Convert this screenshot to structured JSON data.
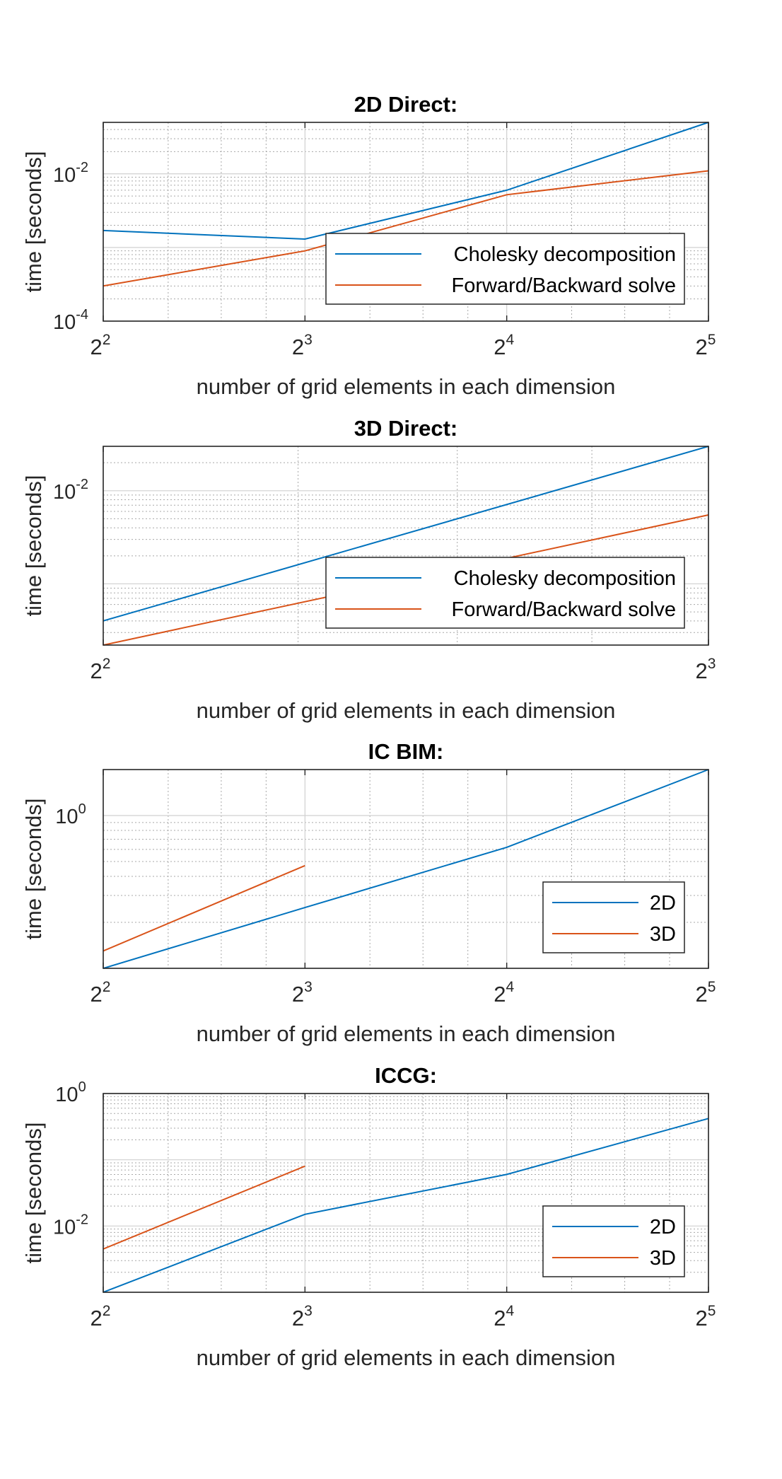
{
  "colors": {
    "series1": "#0072BD",
    "series2": "#D95319",
    "axis": "#262626",
    "grid_major": "#d0d0d0",
    "grid_minor": "#a8a8a8",
    "background": "#ffffff"
  },
  "chart_data": [
    {
      "type": "line",
      "title": "2D Direct:",
      "xlabel": "number of grid elements in each dimension",
      "ylabel": "time [seconds]",
      "x_scale": "log2",
      "y_scale": "log",
      "xlim": [
        4,
        32
      ],
      "ylim": [
        0.0001,
        0.05
      ],
      "x_ticks": [
        4,
        8,
        16,
        32
      ],
      "x_tick_labels": [
        {
          "base": "2",
          "exp": "2"
        },
        {
          "base": "2",
          "exp": "3"
        },
        {
          "base": "2",
          "exp": "4"
        },
        {
          "base": "2",
          "exp": "5"
        }
      ],
      "y_ticks": [
        0.0001,
        0.01
      ],
      "y_tick_labels": [
        {
          "base": "10",
          "exp": "-4"
        },
        {
          "base": "10",
          "exp": "-2"
        }
      ],
      "grid": true,
      "minor_grid": true,
      "legend_position": "lower-right",
      "series": [
        {
          "name": "Cholesky decomposition",
          "x": [
            4,
            8,
            16,
            32
          ],
          "y": [
            0.0017,
            0.0013,
            0.006,
            0.05
          ]
        },
        {
          "name": "Forward/Backward solve",
          "x": [
            4,
            8,
            16,
            32
          ],
          "y": [
            0.0003,
            0.0009,
            0.0052,
            0.011
          ]
        }
      ]
    },
    {
      "type": "line",
      "title": "3D Direct:",
      "xlabel": "number of grid elements in each dimension",
      "ylabel": "time [seconds]",
      "x_scale": "log2",
      "y_scale": "log",
      "xlim": [
        4,
        8
      ],
      "ylim": [
        0.00022,
        0.03
      ],
      "x_ticks": [
        4,
        8
      ],
      "x_tick_labels": [
        {
          "base": "2",
          "exp": "2"
        },
        {
          "base": "2",
          "exp": "3"
        }
      ],
      "y_ticks": [
        0.01
      ],
      "y_tick_labels": [
        {
          "base": "10",
          "exp": "-2"
        }
      ],
      "grid": true,
      "minor_grid": true,
      "legend_position": "lower-right",
      "series": [
        {
          "name": "Cholesky decomposition",
          "x": [
            4,
            8
          ],
          "y": [
            0.0004,
            0.03
          ]
        },
        {
          "name": "Forward/Backward solve",
          "x": [
            4,
            8
          ],
          "y": [
            0.00022,
            0.0055
          ]
        }
      ]
    },
    {
      "type": "line",
      "title": "IC BIM:",
      "xlabel": "number of grid elements in each dimension",
      "ylabel": "time [seconds]",
      "x_scale": "log2",
      "y_scale": "log",
      "xlim": [
        4,
        32
      ],
      "ylim": [
        0.1,
        2.0
      ],
      "x_ticks": [
        4,
        8,
        16,
        32
      ],
      "x_tick_labels": [
        {
          "base": "2",
          "exp": "2"
        },
        {
          "base": "2",
          "exp": "3"
        },
        {
          "base": "2",
          "exp": "4"
        },
        {
          "base": "2",
          "exp": "5"
        }
      ],
      "y_ticks": [
        1
      ],
      "y_tick_labels": [
        {
          "base": "10",
          "exp": "0"
        }
      ],
      "grid": true,
      "minor_grid": true,
      "legend_position": "lower-right",
      "series": [
        {
          "name": "2D",
          "x": [
            4,
            8,
            16,
            32
          ],
          "y": [
            0.1,
            0.25,
            0.62,
            2.0
          ]
        },
        {
          "name": "3D",
          "x": [
            4,
            8
          ],
          "y": [
            0.13,
            0.47
          ]
        }
      ]
    },
    {
      "type": "line",
      "title": "ICCG:",
      "xlabel": "number of grid elements in each dimension",
      "ylabel": "time [seconds]",
      "x_scale": "log2",
      "y_scale": "log",
      "xlim": [
        4,
        32
      ],
      "ylim": [
        0.001,
        1.0
      ],
      "x_ticks": [
        4,
        8,
        16,
        32
      ],
      "x_tick_labels": [
        {
          "base": "2",
          "exp": "2"
        },
        {
          "base": "2",
          "exp": "3"
        },
        {
          "base": "2",
          "exp": "4"
        },
        {
          "base": "2",
          "exp": "5"
        }
      ],
      "y_ticks": [
        0.01,
        1
      ],
      "y_tick_labels": [
        {
          "base": "10",
          "exp": "-2"
        },
        {
          "base": "10",
          "exp": "0"
        }
      ],
      "grid": true,
      "minor_grid": true,
      "legend_position": "lower-right",
      "series": [
        {
          "name": "2D",
          "x": [
            4,
            8,
            16,
            32
          ],
          "y": [
            0.001,
            0.015,
            0.06,
            0.42
          ]
        },
        {
          "name": "3D",
          "x": [
            4,
            8
          ],
          "y": [
            0.0045,
            0.08
          ]
        }
      ]
    }
  ]
}
